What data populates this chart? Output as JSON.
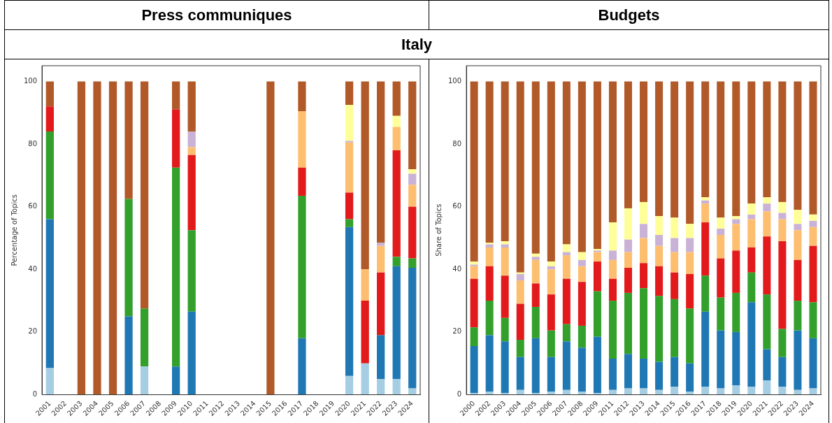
{
  "chart_data": [
    {
      "type": "bar",
      "title": "Press communiques",
      "subtitle": "Italy",
      "ylabel": "Percentage of Topics",
      "stacked": true,
      "grid": false,
      "legend": false,
      "categories": [
        "2001",
        "2002",
        "2003",
        "2004",
        "2005",
        "2006",
        "2007",
        "2008",
        "2009",
        "2010",
        "2011",
        "2012",
        "2013",
        "2014",
        "2015",
        "2016",
        "2017",
        "2018",
        "2019",
        "2020",
        "2021",
        "2022",
        "2023",
        "2024"
      ],
      "ylim": [
        0,
        105
      ],
      "yticks": [
        0,
        20,
        40,
        60,
        80,
        100
      ],
      "series": [
        {
          "color": "#a6cee3",
          "values": [
            8.5,
            0,
            0,
            0,
            0,
            0,
            9,
            0,
            0,
            0,
            0,
            0,
            0,
            0,
            0,
            0,
            0,
            0,
            0,
            6,
            10,
            5,
            5,
            2
          ]
        },
        {
          "color": "#1f78b4",
          "values": [
            47.5,
            0,
            0,
            0,
            0,
            25,
            0,
            0,
            9,
            26.5,
            0,
            0,
            0,
            0,
            0,
            0,
            18,
            0,
            0,
            47.5,
            0,
            14,
            36,
            38.5
          ]
        },
        {
          "color": "#33a02c",
          "values": [
            28,
            0,
            0,
            0,
            0,
            37.5,
            18.5,
            0,
            63.5,
            26,
            0,
            0,
            0,
            0,
            0,
            0,
            45.5,
            0,
            0,
            2.5,
            0,
            0,
            3,
            3
          ]
        },
        {
          "color": "#e31a1c",
          "values": [
            8,
            0,
            0,
            0,
            0,
            0,
            0,
            0,
            18.5,
            24,
            0,
            0,
            0,
            0,
            0,
            0,
            9,
            0,
            0,
            8.5,
            20,
            20,
            34,
            16.5
          ]
        },
        {
          "color": "#fdbf6f",
          "values": [
            0,
            0,
            0,
            0,
            0,
            0,
            0,
            0,
            0,
            2.5,
            0,
            0,
            0,
            0,
            0,
            0,
            18,
            0,
            0,
            16,
            10,
            8.5,
            7.5,
            7
          ]
        },
        {
          "color": "#cab2d6",
          "values": [
            0,
            0,
            0,
            0,
            0,
            0,
            0,
            0,
            0,
            5,
            0,
            0,
            0,
            0,
            0,
            0,
            0,
            0,
            0,
            0.5,
            0,
            1,
            0,
            3.5
          ]
        },
        {
          "color": "#ffff99",
          "values": [
            0,
            0,
            0,
            0,
            0,
            0,
            0,
            0,
            0,
            0,
            0,
            0,
            0,
            0,
            0,
            0,
            0,
            0,
            0,
            11.5,
            0,
            0,
            3.5,
            1.5
          ]
        },
        {
          "color": "#b15928",
          "values": [
            8,
            0,
            100,
            100,
            100,
            37.5,
            72.5,
            0,
            9,
            16,
            0,
            0,
            0,
            0,
            100,
            0,
            9.5,
            0,
            0,
            7.5,
            60,
            51.5,
            11,
            28
          ]
        }
      ]
    },
    {
      "type": "bar",
      "title": "Budgets",
      "ylabel": "Share of Topics",
      "stacked": true,
      "grid": false,
      "legend": false,
      "categories": [
        "2000",
        "2002",
        "2003",
        "2004",
        "2005",
        "2006",
        "2007",
        "2008",
        "2009",
        "2011",
        "2012",
        "2013",
        "2014",
        "2015",
        "2016",
        "2017",
        "2018",
        "2019",
        "2020",
        "2021",
        "2022",
        "2023",
        "2024"
      ],
      "ylim": [
        0,
        105
      ],
      "yticks": [
        0,
        20,
        40,
        60,
        80,
        100
      ],
      "series": [
        {
          "color": "#a6cee3",
          "values": [
            0.5,
            1,
            0.5,
            1.5,
            0.5,
            1,
            1.5,
            1,
            0.5,
            1.5,
            2,
            2,
            1.5,
            2.5,
            1,
            2.5,
            2,
            3,
            2.5,
            4.5,
            2.5,
            1.5,
            2
          ]
        },
        {
          "color": "#1f78b4",
          "values": [
            15,
            18,
            16.5,
            10.5,
            17.5,
            11,
            15.5,
            14,
            18,
            10,
            11,
            9.5,
            9,
            9.5,
            9,
            24,
            18.5,
            17,
            27,
            10,
            9.5,
            19,
            16
          ]
        },
        {
          "color": "#33a02c",
          "values": [
            6,
            11,
            7.5,
            5.5,
            10,
            8.5,
            5.5,
            7,
            14.5,
            18.5,
            19.5,
            22.5,
            21,
            18.5,
            17.5,
            11.5,
            10.5,
            12.5,
            9.5,
            17.5,
            9,
            9.5,
            11.5
          ]
        },
        {
          "color": "#e31a1c",
          "values": [
            15.5,
            11,
            13.5,
            11.5,
            7.5,
            11.5,
            14.5,
            14,
            9.5,
            7,
            8,
            8,
            9.5,
            8.5,
            11,
            17,
            12.5,
            13.5,
            8,
            18.5,
            28,
            13,
            18
          ]
        },
        {
          "color": "#fdbf6f",
          "values": [
            4,
            6,
            9,
            7.5,
            7.5,
            8,
            7.5,
            5,
            3,
            6,
            5,
            8,
            6.5,
            6.5,
            7,
            6,
            7.5,
            8.5,
            9,
            8,
            7,
            9.5,
            6
          ]
        },
        {
          "color": "#cab2d6",
          "values": [
            0.5,
            1,
            1,
            2,
            1,
            1,
            1,
            2,
            0.5,
            3,
            4,
            4.5,
            3.5,
            4.5,
            4.5,
            1,
            2,
            1.5,
            1.5,
            2.5,
            2,
            2,
            2
          ]
        },
        {
          "color": "#ffff99",
          "values": [
            1,
            0.5,
            1,
            0.5,
            1,
            1.5,
            2.5,
            2.5,
            0.5,
            9,
            10,
            7,
            6,
            6.5,
            4.5,
            1,
            3.5,
            1,
            3.5,
            2,
            3.5,
            4.5,
            2
          ]
        },
        {
          "color": "#b15928",
          "values": [
            57.5,
            51.5,
            51,
            61,
            55,
            57.5,
            52,
            54.5,
            53.5,
            45,
            40.5,
            38.5,
            43,
            43.5,
            45.5,
            37,
            43.5,
            43,
            39,
            37,
            38.5,
            41,
            42.5
          ]
        }
      ]
    }
  ]
}
